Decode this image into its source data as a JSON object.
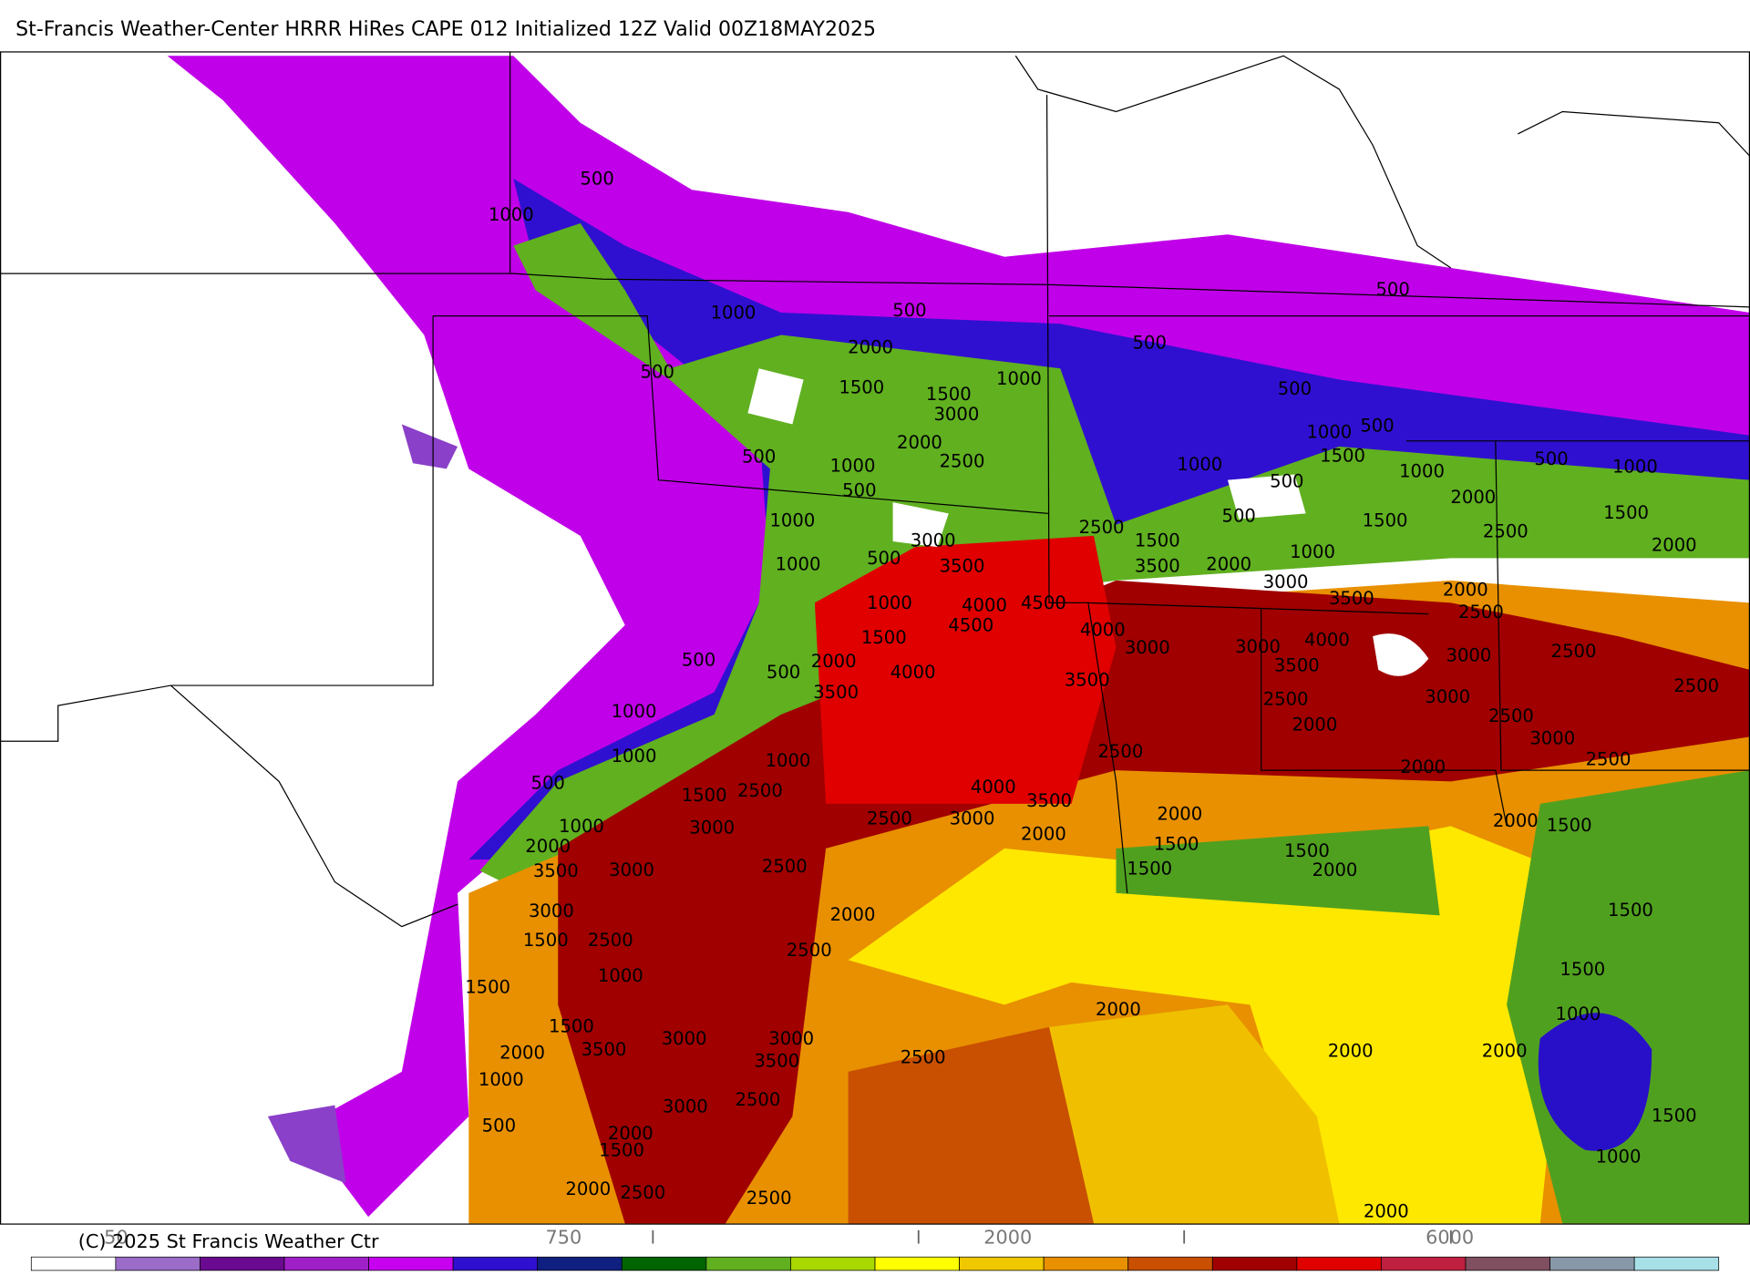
{
  "header": {
    "title": "St-Francis Weather-Center HRRR HiRes CAPE  012 Initialized  12Z Valid 00Z18MAY2025"
  },
  "map": {
    "contour_labels": [
      500,
      1000,
      1000,
      500,
      2000,
      500,
      1000,
      500,
      1500,
      1500,
      3000,
      500,
      500,
      1000,
      500,
      1500,
      500,
      2000,
      2500,
      1000,
      500,
      1000,
      500,
      1000,
      500,
      1000,
      1000,
      500,
      2000,
      1500,
      1500,
      2500,
      1500,
      2500,
      2000,
      3000,
      1000,
      500,
      3500,
      3500,
      2000,
      3000,
      1000,
      2000,
      4000,
      4500,
      3500,
      2500,
      1000,
      4500,
      1500,
      4000,
      3000,
      3000,
      4000,
      2500,
      3000,
      500,
      2000,
      3500,
      4000,
      500,
      3500,
      2500,
      3500,
      3000,
      2500,
      2500,
      1000,
      2000,
      3000,
      2500,
      1000,
      2500,
      1000,
      2000,
      500,
      1500,
      2500,
      4000,
      3500,
      1000,
      3000,
      2500,
      3000,
      2000,
      1500,
      2000,
      2000,
      2000,
      1500,
      1500,
      1500,
      2000,
      3500,
      3000,
      2500,
      3000,
      2000,
      1500,
      1500,
      2500,
      2500,
      1000,
      1500,
      1500,
      2000,
      1000,
      1500,
      3000,
      3000,
      3500,
      2000,
      2500,
      3500,
      2000,
      2000,
      1000,
      3000,
      2500,
      1500,
      500,
      2000,
      1500,
      1000,
      2000,
      2500,
      2500,
      2000
    ]
  },
  "colorbar": {
    "labels": [
      "50",
      "750",
      "2000",
      "6000"
    ],
    "credit": "(C) 2025 St Francis Weather Ctr"
  }
}
